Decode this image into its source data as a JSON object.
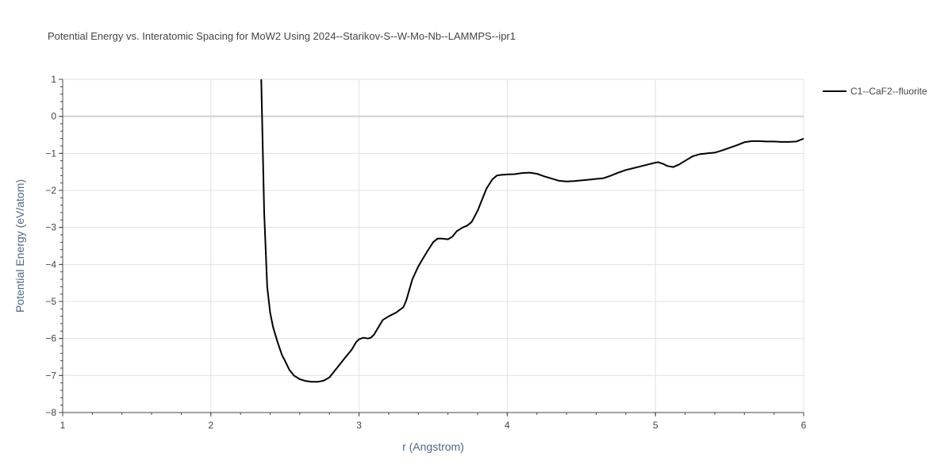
{
  "chart_data": {
    "type": "line",
    "title": "Potential Energy vs. Interatomic Spacing for MoW2 Using 2024--Starikov-S--W-Mo-Nb--LAMMPS--ipr1",
    "xlabel": "r (Angstrom)",
    "ylabel": "Potential Energy (eV/atom)",
    "xlim": [
      1,
      6
    ],
    "ylim": [
      -8,
      1
    ],
    "x_ticks": [
      1,
      2,
      3,
      4,
      5,
      6
    ],
    "y_ticks": [
      1,
      0,
      -1,
      -2,
      -3,
      -4,
      -5,
      -6,
      -7,
      -8
    ],
    "grid": true,
    "legend_position": "top-right",
    "series": [
      {
        "name": "C1--CaF2--fluorite",
        "color": "#000000",
        "x": [
          2.34,
          2.36,
          2.38,
          2.4,
          2.42,
          2.45,
          2.48,
          2.5,
          2.53,
          2.56,
          2.6,
          2.64,
          2.68,
          2.72,
          2.76,
          2.8,
          2.83,
          2.86,
          2.9,
          2.95,
          2.98,
          3.0,
          3.03,
          3.06,
          3.08,
          3.1,
          3.13,
          3.16,
          3.2,
          3.25,
          3.3,
          3.32,
          3.36,
          3.4,
          3.43,
          3.46,
          3.5,
          3.53,
          3.56,
          3.6,
          3.63,
          3.66,
          3.7,
          3.73,
          3.76,
          3.8,
          3.83,
          3.86,
          3.9,
          3.93,
          3.96,
          4.0,
          4.05,
          4.1,
          4.15,
          4.2,
          4.25,
          4.3,
          4.35,
          4.4,
          4.45,
          4.5,
          4.55,
          4.6,
          4.65,
          4.7,
          4.75,
          4.8,
          4.85,
          4.9,
          4.95,
          5.0,
          5.02,
          5.05,
          5.08,
          5.12,
          5.16,
          5.2,
          5.25,
          5.3,
          5.35,
          5.4,
          5.45,
          5.5,
          5.55,
          5.6,
          5.65,
          5.7,
          5.75,
          5.8,
          5.85,
          5.9,
          5.95,
          6.0
        ],
        "values": [
          1.0,
          -2.6,
          -4.6,
          -5.3,
          -5.7,
          -6.1,
          -6.45,
          -6.6,
          -6.85,
          -7.0,
          -7.1,
          -7.15,
          -7.17,
          -7.17,
          -7.14,
          -7.05,
          -6.9,
          -6.75,
          -6.55,
          -6.3,
          -6.1,
          -6.02,
          -5.98,
          -6.0,
          -5.98,
          -5.9,
          -5.7,
          -5.5,
          -5.4,
          -5.3,
          -5.15,
          -4.95,
          -4.4,
          -4.05,
          -3.85,
          -3.65,
          -3.4,
          -3.3,
          -3.3,
          -3.32,
          -3.25,
          -3.1,
          -3.0,
          -2.95,
          -2.85,
          -2.55,
          -2.25,
          -1.95,
          -1.7,
          -1.6,
          -1.58,
          -1.57,
          -1.56,
          -1.53,
          -1.52,
          -1.55,
          -1.62,
          -1.68,
          -1.74,
          -1.76,
          -1.75,
          -1.73,
          -1.71,
          -1.69,
          -1.67,
          -1.6,
          -1.52,
          -1.45,
          -1.4,
          -1.35,
          -1.3,
          -1.25,
          -1.24,
          -1.28,
          -1.34,
          -1.37,
          -1.3,
          -1.2,
          -1.08,
          -1.02,
          -1.0,
          -0.98,
          -0.92,
          -0.85,
          -0.78,
          -0.7,
          -0.67,
          -0.67,
          -0.68,
          -0.68,
          -0.69,
          -0.69,
          -0.68,
          -0.6
        ]
      }
    ]
  }
}
